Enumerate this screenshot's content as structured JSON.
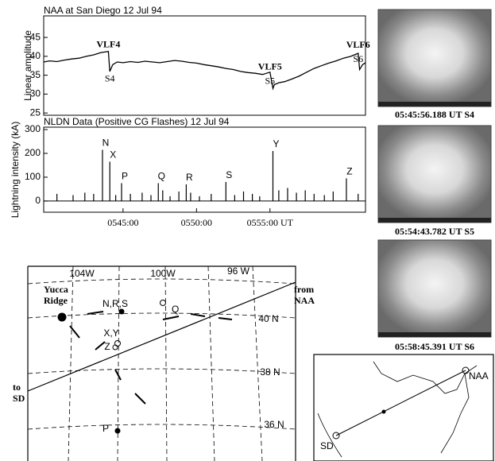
{
  "chart_data": [
    {
      "type": "line",
      "title": "NAA at San Diego   12 Jul 94",
      "y_label": "Linear amplitude",
      "x": [
        39.6,
        40,
        40.5,
        41,
        41.5,
        42,
        42.5,
        43,
        43.5,
        44,
        44.1,
        44.3,
        44.6,
        45,
        45.5,
        46,
        46.5,
        47,
        47.5,
        48,
        48.5,
        49,
        49.5,
        50,
        50.5,
        51,
        51.5,
        52,
        52.5,
        53,
        53.5,
        54,
        54.5,
        55,
        55.2,
        55.3,
        55.6,
        56,
        56.5,
        57,
        57.5,
        58,
        58.5,
        59,
        59.5,
        60,
        60.5,
        61,
        61.1,
        61.3,
        61.5
      ],
      "series": [
        {
          "color": "#000000",
          "values": [
            38.5,
            38.8,
            38.6,
            39,
            39.3,
            39.5,
            40,
            40.4,
            41,
            41.3,
            36,
            37.8,
            38.5,
            38.3,
            38.6,
            38.4,
            38.7,
            38.5,
            38.3,
            38.6,
            38.9,
            38.7,
            38.4,
            38.2,
            37.8,
            37.5,
            37.2,
            36.8,
            36.5,
            36,
            35.7,
            35.5,
            35.2,
            35.8,
            31.5,
            32.5,
            33,
            33.3,
            34,
            34.8,
            35.8,
            36.8,
            37.5,
            38.2,
            38.8,
            39.5,
            40,
            40.8,
            36.5,
            37.8,
            38.3
          ]
        }
      ],
      "annotations": [
        "VLF4",
        "S4",
        "VLF5",
        "S5",
        "VLF6",
        "S6"
      ],
      "xlim": [
        39.6,
        61.5
      ],
      "ylim": [
        24.4,
        50.7
      ],
      "yticks": [
        25,
        30,
        35,
        40,
        45
      ]
    },
    {
      "type": "bar",
      "title": "NLDN Data (Positive CG Flashes) 12 Jul 94",
      "y_label": "Lightning intensity (kA)",
      "x": [
        40.5,
        41.6,
        42.4,
        43.0,
        43.6,
        44.1,
        44.5,
        44.9,
        45.5,
        46.3,
        46.9,
        47.4,
        47.7,
        48.2,
        48.8,
        49.3,
        49.6,
        50.2,
        51.0,
        52.0,
        52.6,
        53.2,
        53.8,
        54.3,
        55.2,
        55.6,
        56.2,
        56.8,
        57.4,
        58.0,
        58.7,
        59.3,
        60.2,
        61.0
      ],
      "values": [
        30,
        25,
        35,
        30,
        215,
        165,
        25,
        75,
        30,
        35,
        25,
        75,
        45,
        20,
        40,
        70,
        35,
        20,
        30,
        80,
        25,
        40,
        30,
        20,
        210,
        45,
        55,
        35,
        45,
        30,
        25,
        40,
        95,
        30
      ],
      "color": "#000000",
      "annotations": [
        "N",
        "X",
        "P",
        "Q",
        "R",
        "S",
        "Y",
        "Z"
      ],
      "xlim": [
        39.6,
        61.5
      ],
      "ylim": [
        -47,
        310
      ],
      "yticks": [
        0,
        100,
        200,
        300
      ],
      "xticks": [
        {
          "value": 45,
          "label": "0545:00"
        },
        {
          "value": 50,
          "label": "0550:00"
        },
        {
          "value": 55,
          "label": "0555:00 UT"
        }
      ]
    }
  ],
  "images": [
    {
      "caption": "05:45:56.188 UT S4"
    },
    {
      "caption": "05:54:43.782 UT S5"
    },
    {
      "caption": "05:58:45.391 UT S6"
    }
  ],
  "map": {
    "longitudes": [
      "104W",
      "100W",
      "96 W"
    ],
    "latitudes": [
      "40 N",
      "38 N",
      "36 N"
    ],
    "site": "Yucca\nRidge",
    "clusters": [
      "N,R,S",
      "Q",
      "X,Y",
      "Z",
      "P"
    ],
    "from": "from\nNAA",
    "to": "to\nSD"
  },
  "inset": {
    "sd": "SD",
    "naa": "NAA"
  }
}
